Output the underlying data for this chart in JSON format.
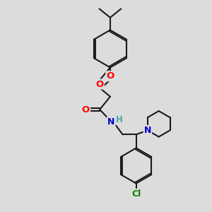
{
  "bg_color": "#dcdcdc",
  "bond_color": "#1a1a1a",
  "bond_width": 1.5,
  "atom_colors": {
    "O": "#ff0000",
    "N": "#0000cc",
    "Cl": "#008000",
    "H": "#4da6a6"
  },
  "font_size": 8.5,
  "fig_size": [
    3.0,
    3.0
  ],
  "dpi": 100
}
